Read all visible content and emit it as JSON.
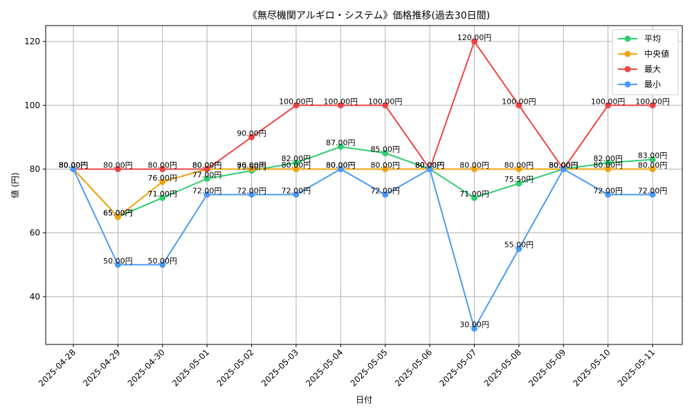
{
  "chart_data": {
    "type": "line",
    "title": "《無尽機関アルギロ・システム》価格推移(過去30日間)",
    "xlabel": "日付",
    "ylabel": "値 (円)",
    "categories": [
      "2025-04-28",
      "2025-04-29",
      "2025-04-30",
      "2025-05-01",
      "2025-05-02",
      "2025-05-03",
      "2025-05-04",
      "2025-05-05",
      "2025-05-06",
      "2025-05-07",
      "2025-05-08",
      "2025-05-09",
      "2025-05-10",
      "2025-05-11"
    ],
    "ylim": [
      25,
      125
    ],
    "yticks": [
      40,
      60,
      80,
      100,
      120
    ],
    "grid": true,
    "legend_position": "top-right",
    "label_suffix": "円",
    "series": [
      {
        "name": "平均",
        "color": "#2ecc71",
        "values": [
          80,
          65,
          71,
          77,
          79.5,
          82,
          87,
          85,
          80,
          71,
          75.5,
          80,
          82,
          83
        ]
      },
      {
        "name": "中央値",
        "color": "#f0a30a",
        "values": [
          80,
          65,
          76,
          80,
          80,
          80,
          80,
          80,
          80,
          80,
          80,
          80,
          80,
          80
        ]
      },
      {
        "name": "最大",
        "color": "#ef4444",
        "values": [
          80,
          80,
          80,
          80,
          90,
          100,
          100,
          100,
          80,
          120,
          100,
          80,
          100,
          100
        ]
      },
      {
        "name": "最小",
        "color": "#4a9af5",
        "values": [
          80,
          50,
          50,
          72,
          72,
          72,
          80,
          72,
          80,
          30,
          55,
          80,
          72,
          72
        ]
      }
    ]
  }
}
